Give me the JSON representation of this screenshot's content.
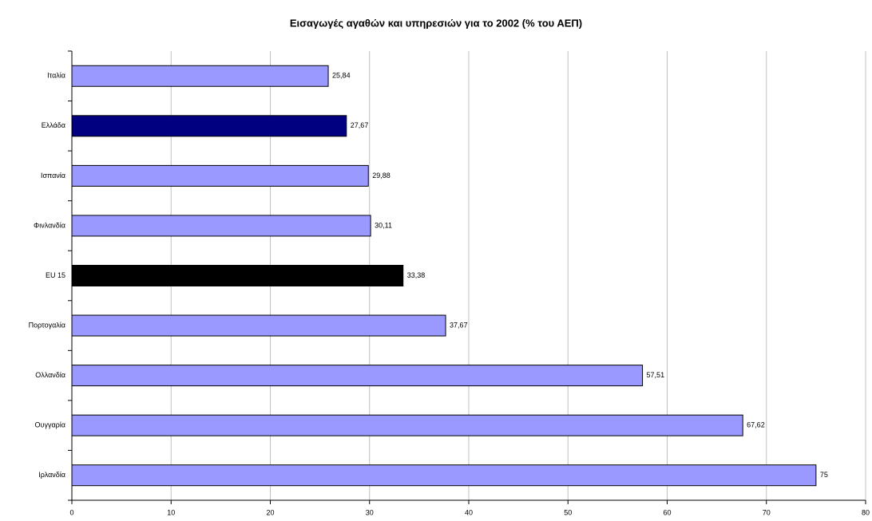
{
  "chart_data": {
    "type": "hbar",
    "title": "Εισαγωγές αγαθών και υπηρεσιών για το 2002 (% του ΑΕΠ)",
    "categories": [
      "Ιταλία",
      "Ελλάδα",
      "Ισπανία",
      "Φινλανδία",
      "EU 15",
      "Πορτογαλία",
      "Ολλανδία",
      "Ουγγαρία",
      "Ιρλανδία"
    ],
    "values": [
      25.84,
      27.67,
      29.88,
      30.11,
      33.38,
      37.67,
      57.51,
      67.62,
      75
    ],
    "value_labels": [
      "25,84",
      "27,67",
      "29,88",
      "30,11",
      "33,38",
      "37,67",
      "57,51",
      "67,62",
      "75"
    ],
    "colors": [
      "#9999ff",
      "#000080",
      "#9999ff",
      "#9999ff",
      "#000000",
      "#9999ff",
      "#9999ff",
      "#9999ff",
      "#9999ff"
    ],
    "xlim": [
      0,
      80
    ],
    "xticks": [
      0,
      10,
      20,
      30,
      40,
      50,
      60,
      70,
      80
    ],
    "grid": true
  }
}
